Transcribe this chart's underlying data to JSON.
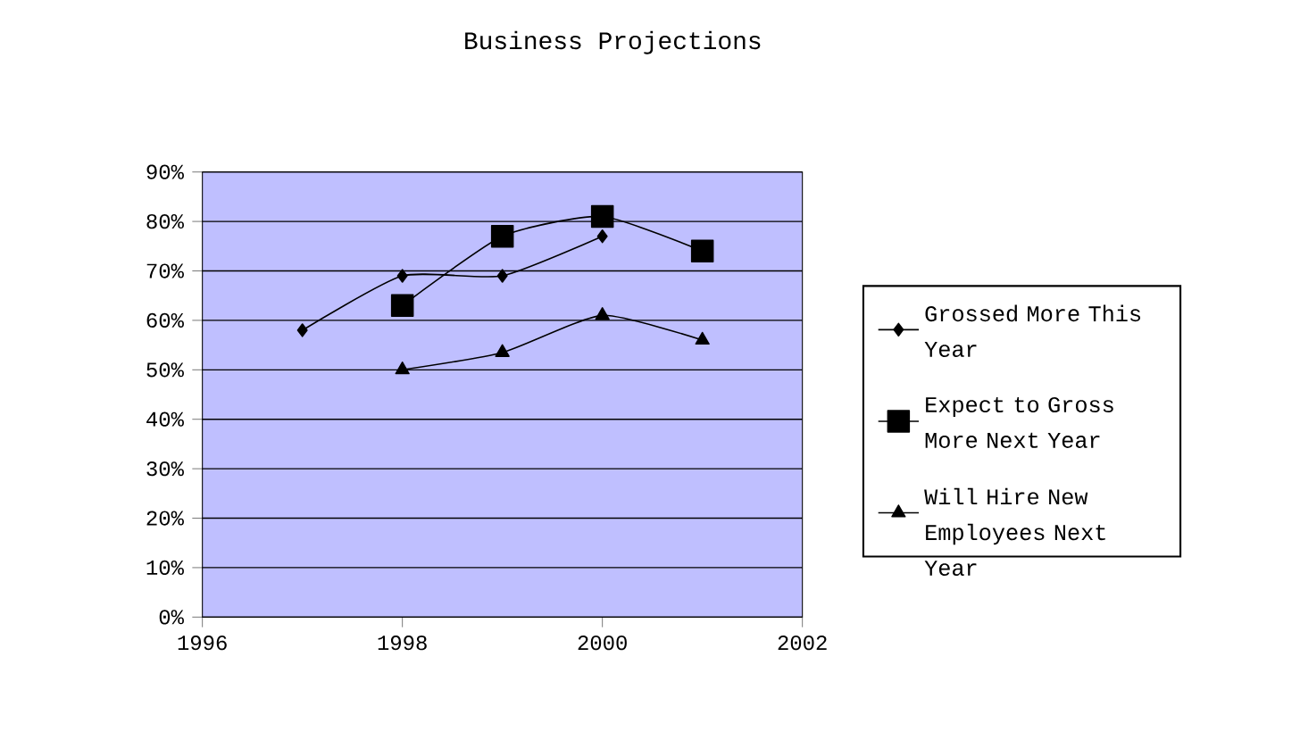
{
  "chart_data": {
    "type": "line",
    "title": "Business Projections",
    "x": [
      1997,
      1998,
      1999,
      2000,
      2001
    ],
    "series": [
      {
        "name": "Grossed More This Year",
        "color": "#000000",
        "marker": "diamond",
        "values": [
          58,
          69,
          69,
          77,
          null
        ]
      },
      {
        "name": "Expect to Gross More Next Year",
        "color": "#000000",
        "marker": "square",
        "values": [
          null,
          63,
          77,
          81,
          74
        ]
      },
      {
        "name": "Will Hire New Employees Next Year",
        "color": "#000000",
        "marker": "triangle",
        "values": [
          null,
          50,
          53.5,
          61,
          56
        ]
      }
    ],
    "xlim": [
      1996,
      2002
    ],
    "xticks": [
      1996,
      1998,
      2000,
      2002
    ],
    "ylim": [
      0,
      90
    ],
    "yticks": [
      {
        "value": 0,
        "label": "0%"
      },
      {
        "value": 10,
        "label": "10%"
      },
      {
        "value": 20,
        "label": "20%"
      },
      {
        "value": 30,
        "label": "30%"
      },
      {
        "value": 40,
        "label": "40%"
      },
      {
        "value": 50,
        "label": "50%"
      },
      {
        "value": 60,
        "label": "60%"
      },
      {
        "value": 70,
        "label": "70%"
      },
      {
        "value": 80,
        "label": "80%"
      },
      {
        "value": 90,
        "label": "90%"
      }
    ],
    "grid": "y",
    "legend": "right",
    "line_style": "solid"
  }
}
